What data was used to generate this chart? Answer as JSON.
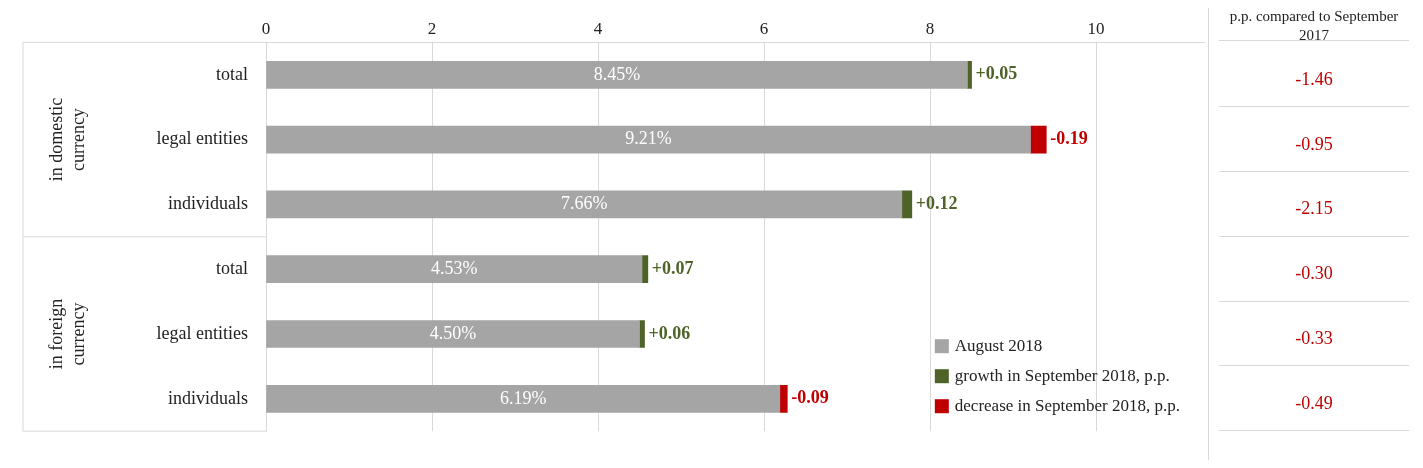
{
  "chart_data": {
    "type": "bar",
    "orientation": "horizontal",
    "stacked": true,
    "categories": [
      "total",
      "legal entities",
      "individuals",
      "total",
      "legal entities",
      "individuals"
    ],
    "series": [
      {
        "name": "August 2018",
        "color": "#a5a5a5",
        "values": [
          8.45,
          9.21,
          7.66,
          4.53,
          4.5,
          6.19
        ],
        "value_labels": [
          "8.45%",
          "9.21%",
          "7.66%",
          "4.53%",
          "4.50%",
          "6.19%"
        ]
      },
      {
        "name": "growth in September 2018, p.p.",
        "color": "#4f6228",
        "values": [
          0.05,
          null,
          0.12,
          0.07,
          0.06,
          null
        ],
        "value_labels": [
          "+0.05",
          null,
          "+0.12",
          "+0.07",
          "+0.06",
          null
        ]
      },
      {
        "name": "decrease in September 2018, p.p.",
        "color": "#c00000",
        "values": [
          null,
          -0.19,
          null,
          null,
          null,
          -0.09
        ],
        "base": [
          null,
          9.4,
          null,
          null,
          null,
          6.28
        ],
        "value_labels": [
          null,
          "-0.19",
          null,
          null,
          null,
          "-0.09"
        ]
      }
    ],
    "xlim": [
      0,
      11.3
    ],
    "xticks": [
      0,
      2,
      4,
      6,
      8,
      10
    ],
    "grid": "x",
    "legend": "bottom right",
    "annotations": [
      "in domestic currency",
      "in foreign currency",
      "p.p. compared to September 2017",
      "-1.46",
      "-0.95",
      "-2.15",
      "-0.30",
      "-0.33",
      "-0.49"
    ]
  }
}
